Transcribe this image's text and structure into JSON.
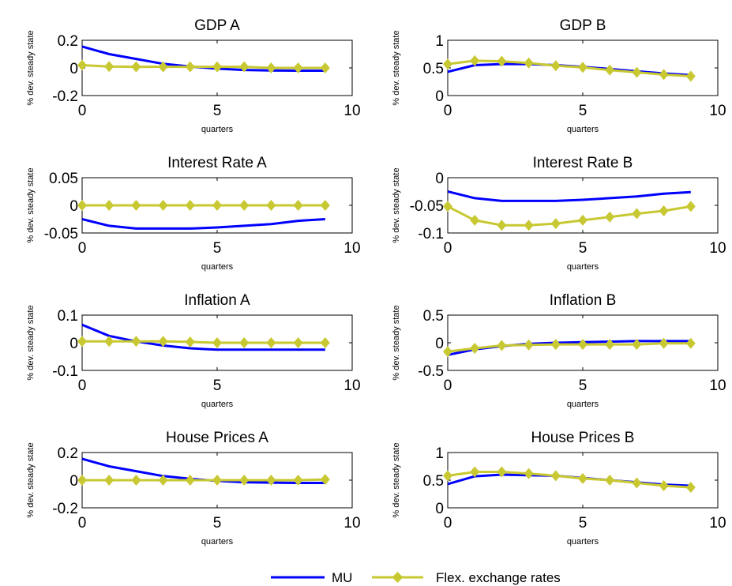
{
  "figure": {
    "legend": [
      {
        "name": "MU",
        "color": "#0000ff",
        "marker": "none"
      },
      {
        "name": "Flex. exchange rates",
        "color": "#c8c832",
        "marker": "diamond"
      }
    ],
    "legend_placement": "bottom-center"
  },
  "chart_data": [
    {
      "type": "line",
      "title": "GDP A",
      "xlabel": "quarters",
      "ylabel": "% dev. steady state",
      "xlim": [
        0,
        10
      ],
      "ylim": [
        -0.2,
        0.2
      ],
      "xticks": [
        "0",
        "5",
        "10"
      ],
      "yticks": [
        "-0.2",
        "0",
        "0.2"
      ],
      "ytick_values": [
        -0.2,
        0,
        0.2
      ],
      "grid": false,
      "x": [
        0,
        1,
        2,
        3,
        4,
        5,
        6,
        7,
        8,
        9
      ],
      "series": [
        {
          "name": "MU",
          "values": [
            0.155,
            0.1,
            0.065,
            0.03,
            0.01,
            -0.005,
            -0.015,
            -0.018,
            -0.02,
            -0.02
          ]
        },
        {
          "name": "Flex. exchange rates",
          "values": [
            0.02,
            0.01,
            0.008,
            0.008,
            0.008,
            0.008,
            0.008,
            0.0,
            0.0,
            0.0
          ]
        }
      ]
    },
    {
      "type": "line",
      "title": "GDP B",
      "xlabel": "quarters",
      "ylabel": "% dev. steady state",
      "xlim": [
        0,
        10
      ],
      "ylim": [
        0,
        1
      ],
      "xticks": [
        "0",
        "5",
        "10"
      ],
      "yticks": [
        "0",
        "0.5",
        "1"
      ],
      "ytick_values": [
        0,
        0.5,
        1
      ],
      "grid": false,
      "x": [
        0,
        1,
        2,
        3,
        4,
        5,
        6,
        7,
        8,
        9
      ],
      "series": [
        {
          "name": "MU",
          "values": [
            0.43,
            0.55,
            0.57,
            0.57,
            0.55,
            0.52,
            0.48,
            0.44,
            0.4,
            0.37
          ]
        },
        {
          "name": "Flex. exchange rates",
          "values": [
            0.57,
            0.63,
            0.62,
            0.59,
            0.54,
            0.51,
            0.46,
            0.42,
            0.38,
            0.35
          ]
        }
      ]
    },
    {
      "type": "line",
      "title": "Interest Rate A",
      "xlabel": "quarters",
      "ylabel": "% dev. steady state",
      "xlim": [
        0,
        10
      ],
      "ylim": [
        -0.05,
        0.05
      ],
      "xticks": [
        "0",
        "5",
        "10"
      ],
      "yticks": [
        "-0.05",
        "0",
        "0.05"
      ],
      "ytick_values": [
        -0.05,
        0,
        0.05
      ],
      "grid": false,
      "x": [
        0,
        1,
        2,
        3,
        4,
        5,
        6,
        7,
        8,
        9
      ],
      "series": [
        {
          "name": "MU",
          "values": [
            -0.025,
            -0.037,
            -0.042,
            -0.042,
            -0.042,
            -0.04,
            -0.037,
            -0.034,
            -0.028,
            -0.025
          ]
        },
        {
          "name": "Flex. exchange rates",
          "values": [
            0,
            0,
            0,
            0,
            0,
            0,
            0,
            0,
            0,
            0
          ]
        }
      ]
    },
    {
      "type": "line",
      "title": "Interest Rate B",
      "xlabel": "quarters",
      "ylabel": "% dev. steady state",
      "xlim": [
        0,
        10
      ],
      "ylim": [
        -0.1,
        0
      ],
      "xticks": [
        "0",
        "5",
        "10"
      ],
      "yticks": [
        "-0.1",
        "-0.05",
        "0"
      ],
      "ytick_values": [
        -0.1,
        -0.05,
        0
      ],
      "grid": false,
      "x": [
        0,
        1,
        2,
        3,
        4,
        5,
        6,
        7,
        8,
        9
      ],
      "series": [
        {
          "name": "MU",
          "values": [
            -0.025,
            -0.037,
            -0.042,
            -0.042,
            -0.042,
            -0.04,
            -0.037,
            -0.034,
            -0.029,
            -0.026
          ]
        },
        {
          "name": "Flex. exchange rates",
          "values": [
            -0.052,
            -0.077,
            -0.086,
            -0.086,
            -0.083,
            -0.077,
            -0.071,
            -0.065,
            -0.06,
            -0.052
          ]
        }
      ]
    },
    {
      "type": "line",
      "title": "Inflation A",
      "xlabel": "quarters",
      "ylabel": "% dev. steady state",
      "xlim": [
        0,
        10
      ],
      "ylim": [
        -0.1,
        0.1
      ],
      "xticks": [
        "0",
        "5",
        "10"
      ],
      "yticks": [
        "-0.1",
        "0",
        "0.1"
      ],
      "ytick_values": [
        -0.1,
        0,
        0.1
      ],
      "grid": false,
      "x": [
        0,
        1,
        2,
        3,
        4,
        5,
        6,
        7,
        8,
        9
      ],
      "series": [
        {
          "name": "MU",
          "values": [
            0.065,
            0.025,
            0.005,
            -0.01,
            -0.02,
            -0.025,
            -0.025,
            -0.025,
            -0.025,
            -0.025
          ]
        },
        {
          "name": "Flex. exchange rates",
          "values": [
            0.005,
            0.005,
            0.005,
            0.005,
            0.003,
            0,
            0,
            0,
            0,
            0
          ]
        }
      ]
    },
    {
      "type": "line",
      "title": "Inflation B",
      "xlabel": "quarters",
      "ylabel": "% dev. steady state",
      "xlim": [
        0,
        10
      ],
      "ylim": [
        -0.5,
        0.5
      ],
      "xticks": [
        "0",
        "5",
        "10"
      ],
      "yticks": [
        "-0.5",
        "0",
        "0.5"
      ],
      "ytick_values": [
        -0.5,
        0,
        0.5
      ],
      "grid": false,
      "x": [
        0,
        1,
        2,
        3,
        4,
        5,
        6,
        7,
        8,
        9
      ],
      "series": [
        {
          "name": "MU",
          "values": [
            -0.22,
            -0.12,
            -0.06,
            -0.02,
            0.0,
            0.01,
            0.02,
            0.03,
            0.03,
            0.03
          ]
        },
        {
          "name": "Flex. exchange rates",
          "values": [
            -0.16,
            -0.1,
            -0.05,
            -0.04,
            -0.03,
            -0.03,
            -0.03,
            -0.03,
            -0.01,
            -0.01
          ]
        }
      ]
    },
    {
      "type": "line",
      "title": "House Prices A",
      "xlabel": "quarters",
      "ylabel": "% dev. steady state",
      "xlim": [
        0,
        10
      ],
      "ylim": [
        -0.2,
        0.2
      ],
      "xticks": [
        "0",
        "5",
        "10"
      ],
      "yticks": [
        "-0.2",
        "0",
        "0.2"
      ],
      "ytick_values": [
        -0.2,
        0,
        0.2
      ],
      "grid": false,
      "x": [
        0,
        1,
        2,
        3,
        4,
        5,
        6,
        7,
        8,
        9
      ],
      "series": [
        {
          "name": "MU",
          "values": [
            0.155,
            0.1,
            0.065,
            0.03,
            0.01,
            -0.005,
            -0.015,
            -0.018,
            -0.02,
            -0.02
          ]
        },
        {
          "name": "Flex. exchange rates",
          "values": [
            0.0,
            0.0,
            0.0,
            0.0,
            0.0,
            0.0,
            0.0,
            0.0,
            0.0,
            0.005
          ]
        }
      ]
    },
    {
      "type": "line",
      "title": "House Prices B",
      "xlabel": "quarters",
      "ylabel": "% dev. steady state",
      "xlim": [
        0,
        10
      ],
      "ylim": [
        0,
        1
      ],
      "xticks": [
        "0",
        "5",
        "10"
      ],
      "yticks": [
        "0",
        "0.5",
        "1"
      ],
      "ytick_values": [
        0,
        0.5,
        1
      ],
      "grid": false,
      "x": [
        0,
        1,
        2,
        3,
        4,
        5,
        6,
        7,
        8,
        9
      ],
      "series": [
        {
          "name": "MU",
          "values": [
            0.43,
            0.57,
            0.6,
            0.59,
            0.58,
            0.54,
            0.5,
            0.46,
            0.42,
            0.4
          ]
        },
        {
          "name": "Flex. exchange rates",
          "values": [
            0.58,
            0.65,
            0.65,
            0.62,
            0.58,
            0.53,
            0.5,
            0.45,
            0.4,
            0.37
          ]
        }
      ]
    }
  ]
}
